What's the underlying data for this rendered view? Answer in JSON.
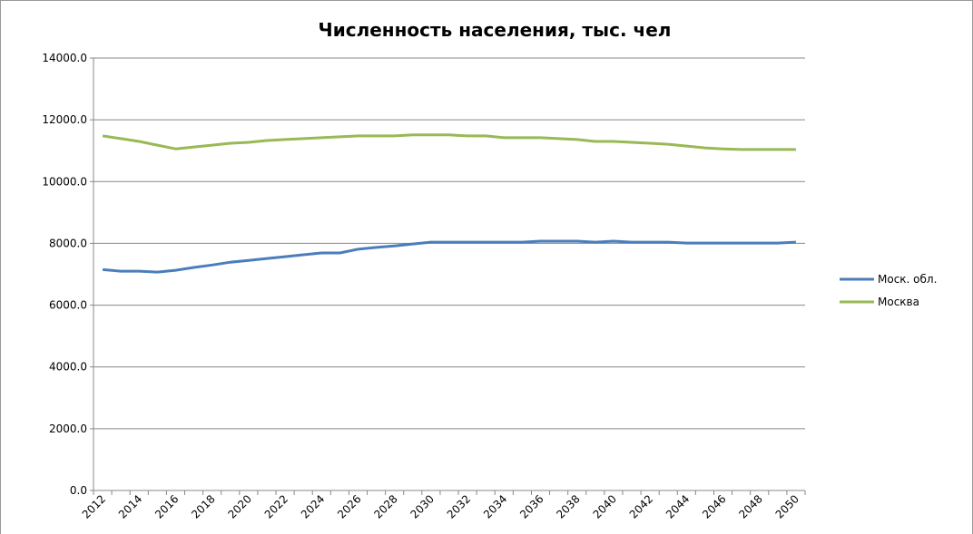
{
  "chart_data": {
    "type": "line",
    "title": "Численность населения,  тыс. чел",
    "categories": [
      "2012",
      null,
      "2014",
      null,
      "2016",
      null,
      "2018",
      null,
      "2020",
      null,
      "2022",
      null,
      "2024",
      null,
      "2026",
      null,
      "2028",
      null,
      "2030",
      null,
      "2032",
      null,
      "2034",
      null,
      "2036",
      null,
      "2038",
      null,
      "2040",
      null,
      "2042",
      null,
      "2044",
      null,
      "2046",
      null,
      "2048",
      null,
      "2050"
    ],
    "series": [
      {
        "name": "Моск. обл.",
        "color": "#4a7ebb",
        "values": [
          7150,
          7100,
          7100,
          7070,
          7130,
          7220,
          7300,
          7390,
          7450,
          7510,
          7570,
          7630,
          7690,
          7690,
          7810,
          7870,
          7920,
          7980,
          8040,
          8040,
          8040,
          8040,
          8040,
          8040,
          8070,
          8070,
          8070,
          8040,
          8070,
          8040,
          8040,
          8040,
          8010,
          8010,
          8010,
          8010,
          8010,
          8010,
          8040
        ]
      },
      {
        "name": "Москва",
        "color": "#98b954",
        "values": [
          11480,
          11390,
          11300,
          11180,
          11060,
          11120,
          11180,
          11240,
          11270,
          11330,
          11360,
          11390,
          11420,
          11450,
          11480,
          11480,
          11480,
          11510,
          11510,
          11510,
          11480,
          11480,
          11420,
          11420,
          11420,
          11390,
          11360,
          11300,
          11300,
          11270,
          11240,
          11210,
          11150,
          11090,
          11060,
          11040,
          11040,
          11040,
          11040
        ]
      }
    ],
    "ylim": [
      0,
      14000
    ],
    "yticks": [
      {
        "value": 0,
        "label": "0.0"
      },
      {
        "value": 2000,
        "label": "2000.0"
      },
      {
        "value": 4000,
        "label": "4000.0"
      },
      {
        "value": 6000,
        "label": "6000.0"
      },
      {
        "value": 8000,
        "label": "8000.0"
      },
      {
        "value": 10000,
        "label": "10000.0"
      },
      {
        "value": 12000,
        "label": "12000.0"
      },
      {
        "value": 14000,
        "label": "14000.0"
      }
    ],
    "grid": true,
    "legend": "right"
  }
}
